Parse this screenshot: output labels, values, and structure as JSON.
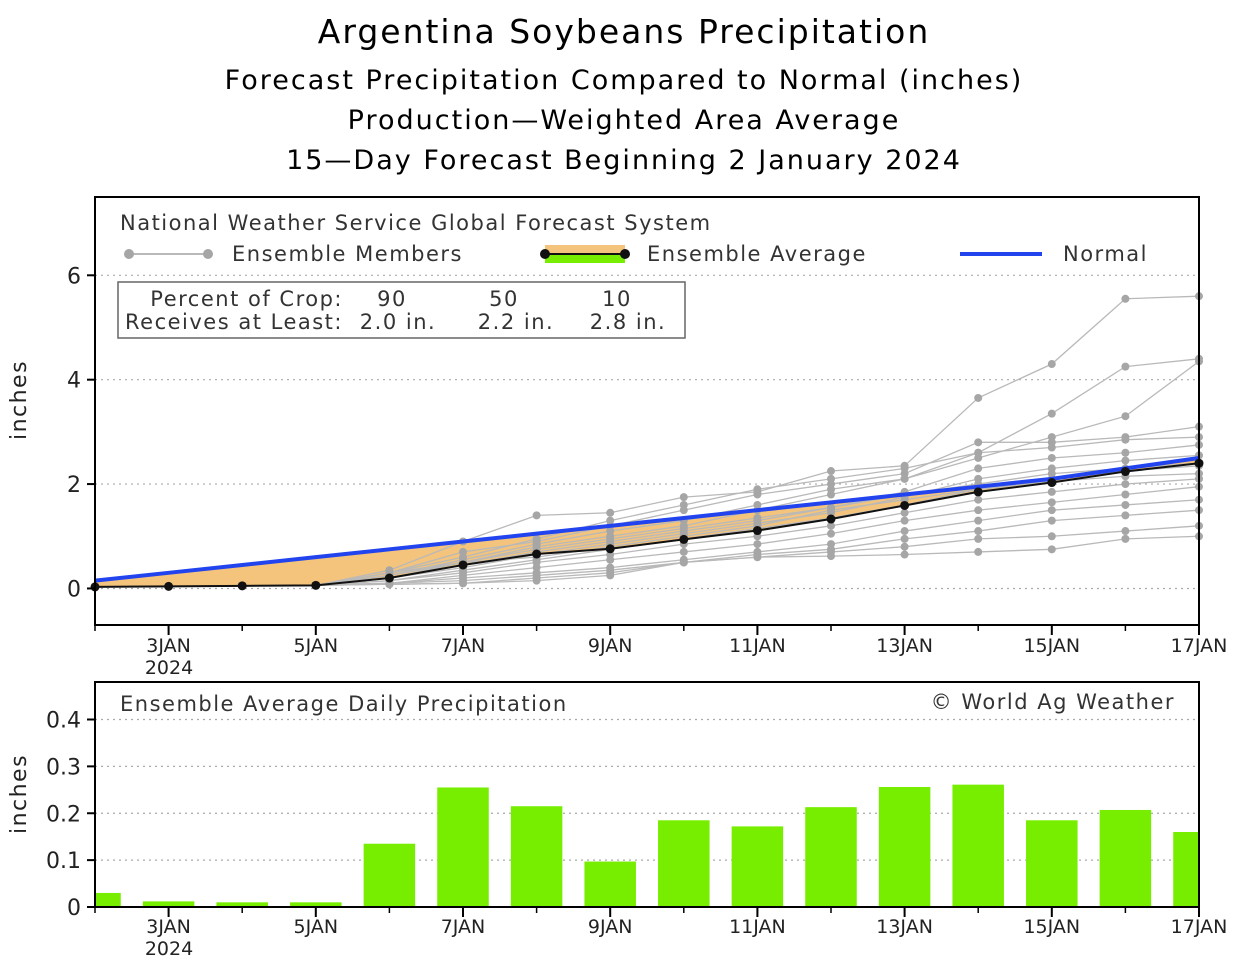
{
  "chart_data": [
    {
      "type": "line",
      "title": "Argentina Soybeans Precipitation",
      "subtitles": [
        "Forecast Precipitation Compared to Normal (inches)",
        "Production—Weighted Area Average",
        "15—Day Forecast Beginning 2 January 2024"
      ],
      "source": "National Weather Service Global Forecast System",
      "legend": {
        "members": "Ensemble Members",
        "average": "Ensemble Average",
        "normal": "Normal"
      },
      "crop_box": {
        "row1_label": "Percent of Crop:",
        "row2_label": "Receives at Least:",
        "percents": [
          "90",
          "50",
          "10"
        ],
        "amounts": [
          "2.0 in.",
          "2.2 in.",
          "2.8 in."
        ]
      },
      "ylabel": "inches",
      "ylim": [
        -0.7,
        7.5
      ],
      "yticks": [
        "0",
        "2",
        "4",
        "6"
      ],
      "xlim": [
        2,
        17
      ],
      "xticks": [
        {
          "day": 3,
          "label": "3JAN"
        },
        {
          "day": 5,
          "label": "5JAN"
        },
        {
          "day": 7,
          "label": "7JAN"
        },
        {
          "day": 9,
          "label": "9JAN"
        },
        {
          "day": 11,
          "label": "11JAN"
        },
        {
          "day": 13,
          "label": "13JAN"
        },
        {
          "day": 15,
          "label": "15JAN"
        },
        {
          "day": 17,
          "label": "17JAN"
        }
      ],
      "year_label": "2024",
      "x": [
        2,
        3,
        4,
        5,
        6,
        7,
        8,
        9,
        10,
        11,
        12,
        13,
        14,
        15,
        16,
        17
      ],
      "normal": [
        0.15,
        0.3,
        0.45,
        0.6,
        0.75,
        0.9,
        1.05,
        1.2,
        1.35,
        1.5,
        1.65,
        1.8,
        1.95,
        2.1,
        2.3,
        2.5
      ],
      "ensemble_average": [
        0.03,
        0.04,
        0.05,
        0.06,
        0.2,
        0.45,
        0.66,
        0.76,
        0.94,
        1.11,
        1.33,
        1.59,
        1.85,
        2.03,
        2.24,
        2.4
      ],
      "members": [
        [
          0.03,
          0.04,
          0.05,
          0.06,
          0.35,
          0.9,
          1.4,
          1.45,
          1.75,
          1.85,
          2.25,
          2.35,
          3.65,
          4.3,
          5.55,
          5.6
        ],
        [
          0.03,
          0.04,
          0.05,
          0.06,
          0.3,
          0.6,
          0.95,
          1.3,
          1.6,
          1.9,
          2.1,
          2.3,
          2.6,
          3.35,
          4.25,
          4.4
        ],
        [
          0.03,
          0.04,
          0.05,
          0.06,
          0.25,
          0.55,
          0.85,
          1.1,
          1.3,
          1.6,
          1.9,
          2.1,
          2.5,
          2.9,
          3.3,
          4.35
        ],
        [
          0.03,
          0.04,
          0.05,
          0.06,
          0.3,
          0.7,
          0.9,
          1.2,
          1.5,
          1.8,
          2.0,
          2.2,
          2.8,
          2.8,
          2.9,
          3.1
        ],
        [
          0.03,
          0.04,
          0.05,
          0.06,
          0.2,
          0.5,
          0.8,
          1.0,
          1.2,
          1.5,
          1.8,
          2.1,
          2.6,
          2.7,
          2.85,
          2.9
        ],
        [
          0.03,
          0.04,
          0.05,
          0.06,
          0.25,
          0.5,
          0.75,
          0.95,
          1.15,
          1.35,
          1.55,
          1.85,
          2.3,
          2.5,
          2.6,
          2.75
        ],
        [
          0.03,
          0.04,
          0.05,
          0.06,
          0.2,
          0.4,
          0.65,
          0.85,
          1.05,
          1.25,
          1.45,
          1.75,
          2.1,
          2.3,
          2.45,
          2.55
        ],
        [
          0.03,
          0.04,
          0.05,
          0.06,
          0.15,
          0.35,
          0.55,
          0.75,
          0.95,
          1.15,
          1.35,
          1.6,
          1.9,
          2.1,
          2.25,
          2.35
        ],
        [
          0.03,
          0.04,
          0.05,
          0.06,
          0.15,
          0.3,
          0.5,
          0.65,
          0.85,
          1.0,
          1.2,
          1.45,
          1.7,
          1.85,
          2.0,
          2.1
        ],
        [
          0.03,
          0.04,
          0.05,
          0.06,
          0.1,
          0.25,
          0.4,
          0.55,
          0.7,
          0.85,
          1.05,
          1.3,
          1.5,
          1.65,
          1.8,
          1.95
        ],
        [
          0.03,
          0.04,
          0.05,
          0.06,
          0.1,
          0.2,
          0.3,
          0.4,
          0.55,
          0.7,
          0.85,
          1.1,
          1.3,
          1.5,
          1.6,
          1.7
        ],
        [
          0.03,
          0.04,
          0.05,
          0.06,
          0.1,
          0.15,
          0.25,
          0.35,
          0.5,
          0.65,
          0.75,
          0.95,
          1.1,
          1.3,
          1.4,
          1.5
        ],
        [
          0.03,
          0.04,
          0.05,
          0.06,
          0.08,
          0.1,
          0.2,
          0.3,
          0.5,
          0.6,
          0.7,
          0.8,
          0.95,
          1.0,
          1.1,
          1.2
        ],
        [
          0.03,
          0.04,
          0.05,
          0.06,
          0.08,
          0.1,
          0.15,
          0.25,
          0.5,
          0.6,
          0.62,
          0.65,
          0.7,
          0.75,
          0.95,
          1.0
        ],
        [
          0.03,
          0.04,
          0.05,
          0.06,
          0.2,
          0.45,
          0.7,
          0.9,
          1.1,
          1.3,
          1.55,
          1.8,
          2.0,
          2.2,
          2.3,
          2.4
        ],
        [
          0.03,
          0.04,
          0.05,
          0.06,
          0.3,
          0.5,
          0.6,
          0.8,
          1.0,
          1.2,
          1.5,
          1.7,
          1.9,
          2.05,
          2.15,
          2.2
        ]
      ]
    },
    {
      "type": "bar",
      "title": "Ensemble Average Daily Precipitation",
      "credit": "© World Ag Weather",
      "ylabel": "inches",
      "ylim": [
        0,
        0.48
      ],
      "yticks": [
        "0",
        "0.1",
        "0.2",
        "0.3",
        "0.4"
      ],
      "xlim": [
        2,
        17
      ],
      "x": [
        2,
        3,
        4,
        5,
        6,
        7,
        8,
        9,
        10,
        11,
        12,
        13,
        14,
        15,
        16,
        17
      ],
      "values": [
        0.03,
        0.012,
        0.01,
        0.01,
        0.135,
        0.255,
        0.215,
        0.097,
        0.185,
        0.172,
        0.213,
        0.256,
        0.261,
        0.185,
        0.207,
        0.16
      ],
      "color": "#77ee00"
    }
  ],
  "colors": {
    "normal": "#2244ee",
    "fill": "#f4c47c",
    "members": "#b9b9b9",
    "member_dots": "#a6a6a6",
    "average": "#111111",
    "bars": "#77ee00",
    "legend_green": "#77ee00"
  }
}
